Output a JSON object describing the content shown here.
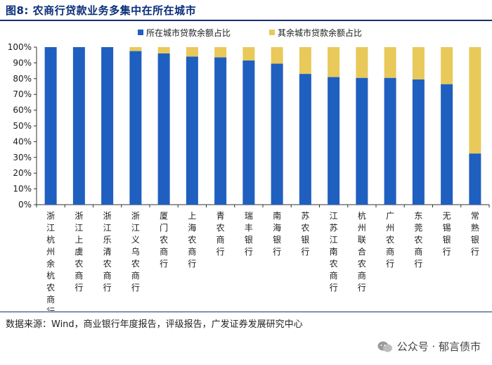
{
  "figure": {
    "title": "图8:  农商行贷款业务多集中在所在城市",
    "source": "数据来源：Wind，商业银行年度报告，评级报告，广发证券发展研究中心",
    "watermark": "公众号 · 郁言债市"
  },
  "chart_data": {
    "type": "bar",
    "stacked": true,
    "categories": [
      "浙江杭州余杭农商行",
      "浙江上虞农商行",
      "浙江乐清农商行",
      "浙江义乌农商行",
      "厦门农商行",
      "上海农商行",
      "青农商行",
      "瑞丰银行",
      "南海银行",
      "苏农银行",
      "江苏江南农商行",
      "杭州联合农商行",
      "广州农商行",
      "东莞农商行",
      "无锡银行",
      "常熟银行"
    ],
    "series": [
      {
        "name": "所在城市贷款余额占比",
        "color": "#1f5fbf",
        "values": [
          100,
          100,
          100,
          97.5,
          96,
          94,
          93.5,
          91.5,
          89.5,
          83,
          81,
          80.5,
          80.5,
          79.5,
          76.5,
          32.5
        ]
      },
      {
        "name": "其余城市贷款余额占比",
        "color": "#e8c95a",
        "values": [
          0,
          0,
          0,
          2.5,
          4,
          6,
          6.5,
          8.5,
          10.5,
          17,
          19,
          19.5,
          19.5,
          20.5,
          23.5,
          67.5
        ]
      }
    ],
    "y_ticks": [
      "0%",
      "10%",
      "20%",
      "30%",
      "40%",
      "50%",
      "60%",
      "70%",
      "80%",
      "90%",
      "100%"
    ],
    "ylim": [
      0,
      100
    ],
    "legend_position": "top-center"
  }
}
